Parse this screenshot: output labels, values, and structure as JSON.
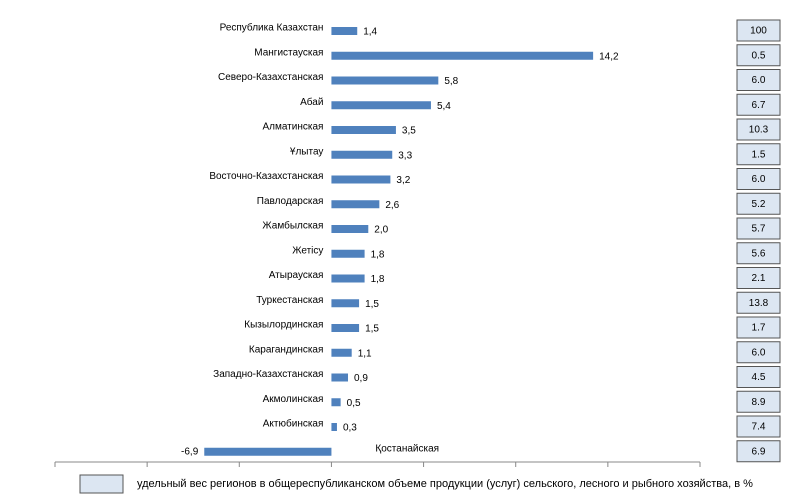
{
  "chart_data": {
    "type": "barh",
    "categories": [
      "Республика Казахстан",
      "Мангистауская",
      "Северо-Казахстанская",
      "Абай",
      "Алматинская",
      "Ұлытау",
      "Восточно-Казахстанская",
      "Павлодарская",
      "Жамбылская",
      "Жетісу",
      "Атырауская",
      "Туркестанская",
      "Кызылординская",
      "Карагандинская",
      "Западно-Казахстанская",
      "Акмолинская",
      "Актюбинская",
      "Қостанайская"
    ],
    "values": [
      1.4,
      14.2,
      5.8,
      5.4,
      3.5,
      3.3,
      3.2,
      2.6,
      2.0,
      1.8,
      1.8,
      1.5,
      1.5,
      1.1,
      0.9,
      0.5,
      0.3,
      -6.9
    ],
    "value_labels": [
      "1,4",
      "14,2",
      "5,8",
      "5,4",
      "3,5",
      "3,3",
      "3,2",
      "2,6",
      "2,0",
      "1,8",
      "1,8",
      "1,5",
      "1,5",
      "1,1",
      "0,9",
      "0,5",
      "0,3",
      "-6,9"
    ],
    "color": "#4f81bd",
    "xlim": [
      -15,
      20
    ],
    "xticks": [
      -15,
      -10,
      -5,
      0,
      5,
      10,
      15,
      20
    ],
    "shares": {
      "name": "удельный вес  регионов в общереспубликанском объеме продукции (услуг) сельского, лесного и рыбного хозяйства,  в %",
      "color": "#dce6f2",
      "values": [
        100,
        0.5,
        6.0,
        6.7,
        10.3,
        1.5,
        6.0,
        5.2,
        5.7,
        5.6,
        2.1,
        13.8,
        1.7,
        6.0,
        4.5,
        8.9,
        7.4,
        6.9
      ],
      "value_labels": [
        "100",
        "0.5",
        "6.0",
        "6.7",
        "10.3",
        "1.5",
        "6.0",
        "5.2",
        "5.7",
        "5.6",
        "2.1",
        "13.8",
        "1.7",
        "6.0",
        "4.5",
        "8.9",
        "7.4",
        "6.9"
      ]
    }
  }
}
